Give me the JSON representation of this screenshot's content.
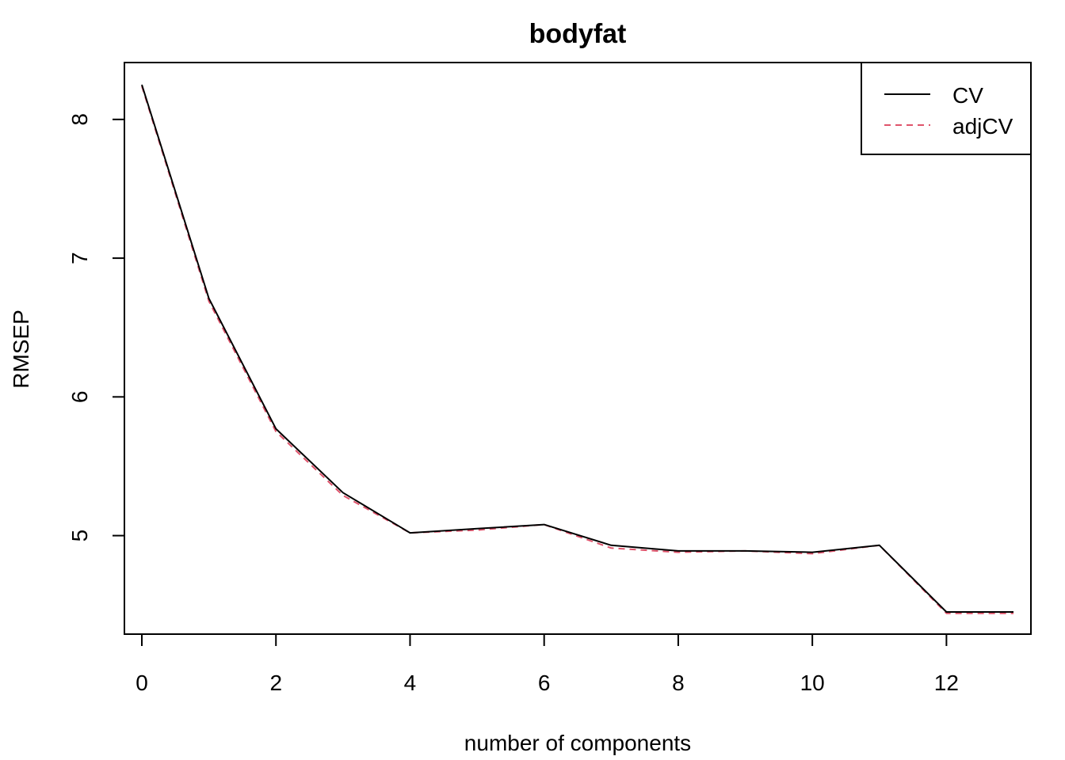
{
  "chart_data": {
    "type": "line",
    "title": "bodyfat",
    "xlabel": "number of components",
    "ylabel": "RMSEP",
    "x": [
      0,
      1,
      2,
      3,
      4,
      5,
      6,
      7,
      8,
      9,
      10,
      11,
      12,
      13
    ],
    "x_ticks": [
      0,
      2,
      4,
      6,
      8,
      10,
      12
    ],
    "y_ticks": [
      5,
      6,
      7,
      8
    ],
    "xlim": [
      -0.26,
      13.26
    ],
    "ylim": [
      4.29,
      8.41
    ],
    "grid": false,
    "legend_position": "top-right",
    "series": [
      {
        "name": "CV",
        "color": "#000000",
        "line_style": "solid",
        "values": [
          8.25,
          6.71,
          5.77,
          5.31,
          5.02,
          5.05,
          5.08,
          4.93,
          4.89,
          4.89,
          4.88,
          4.93,
          4.45,
          4.45
        ]
      },
      {
        "name": "adjCV",
        "color": "#DF536B",
        "line_style": "dashed",
        "values": [
          8.24,
          6.69,
          5.75,
          5.29,
          5.02,
          5.04,
          5.08,
          4.91,
          4.88,
          4.89,
          4.87,
          4.93,
          4.44,
          4.44
        ]
      }
    ]
  }
}
